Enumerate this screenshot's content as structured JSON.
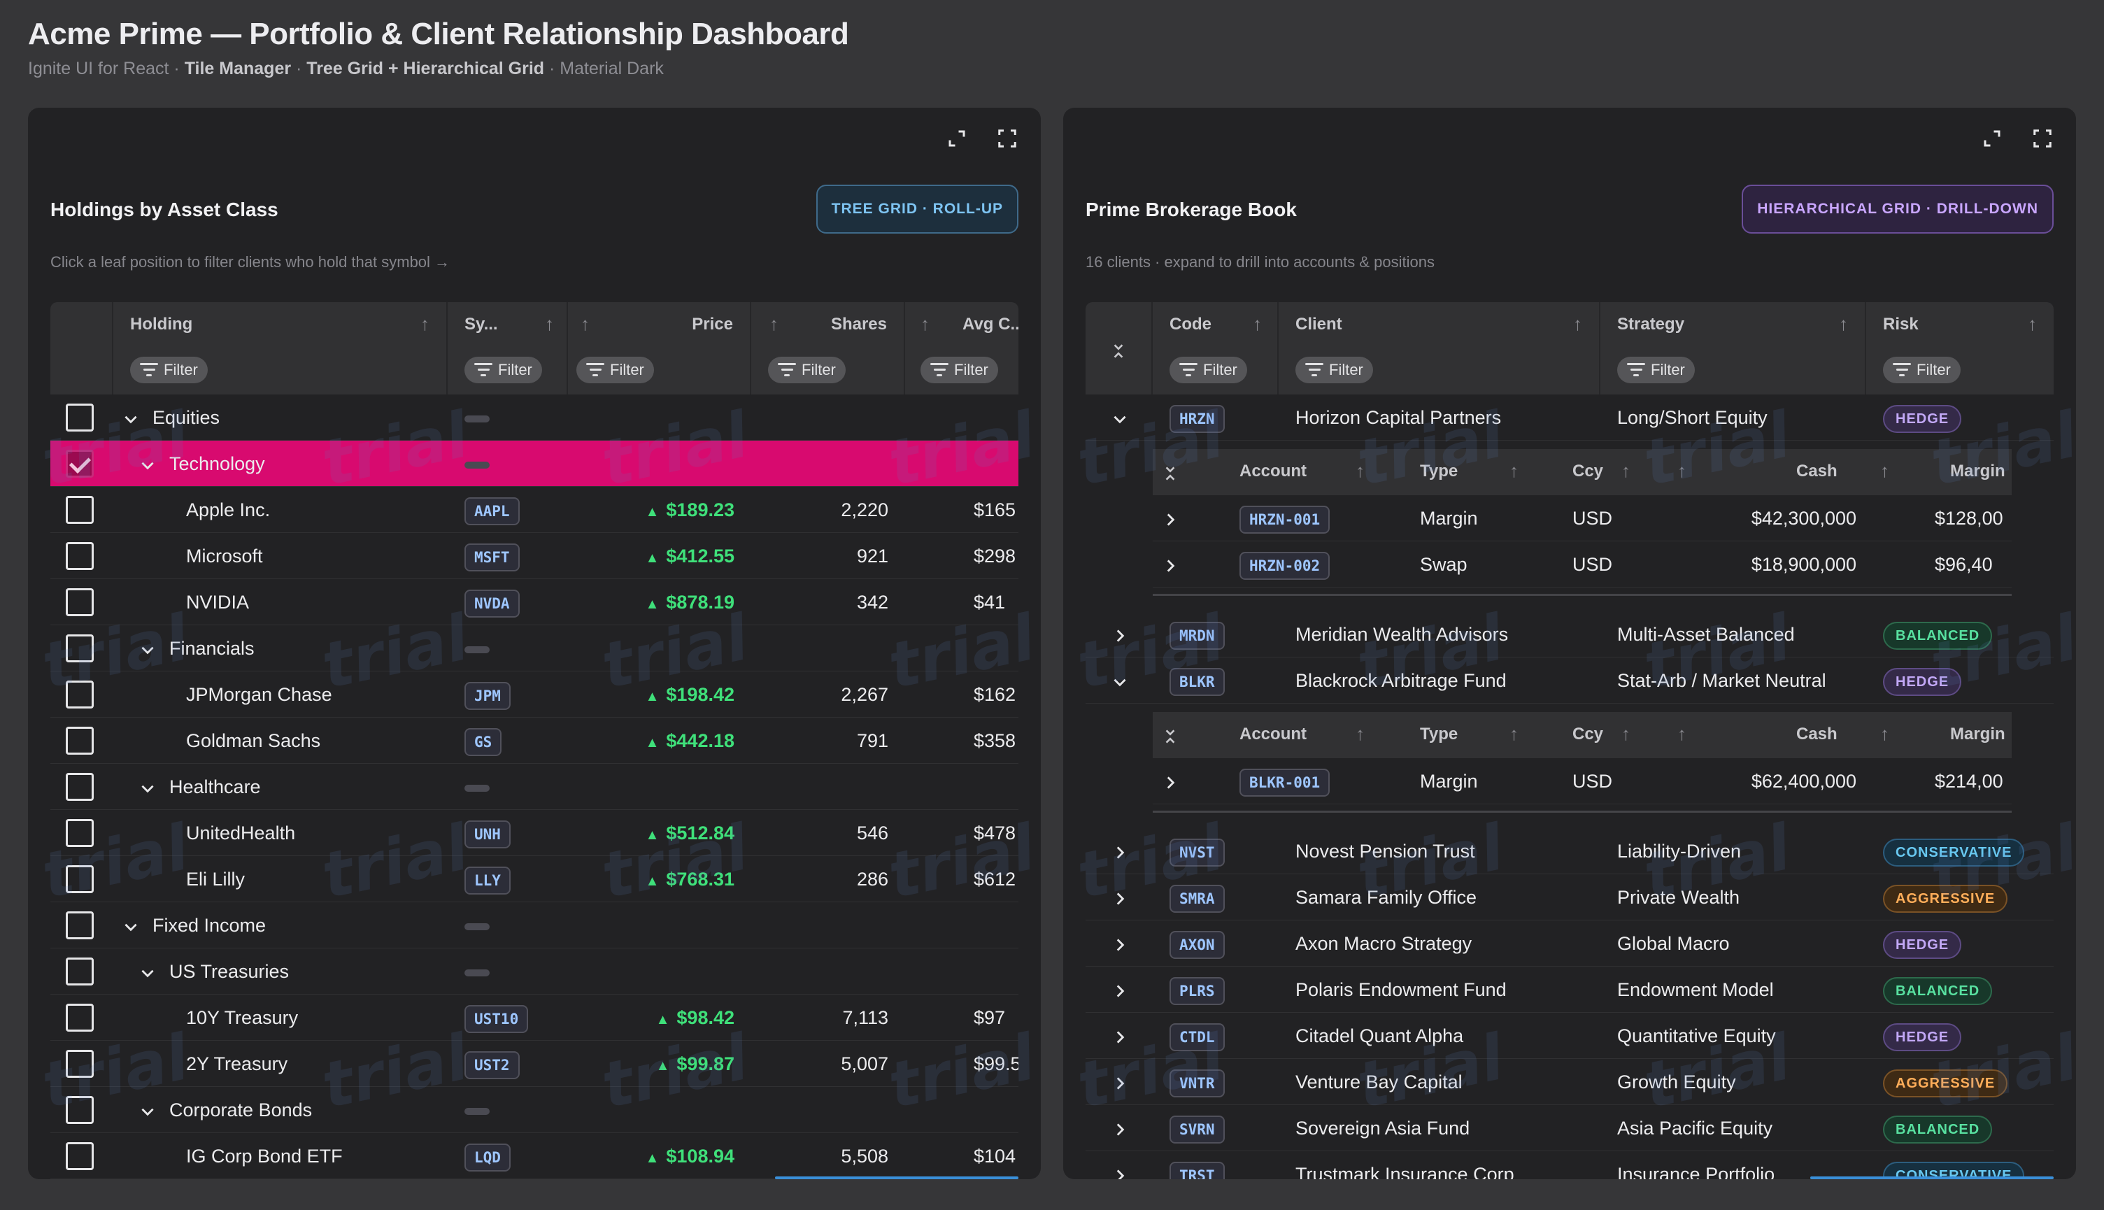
{
  "header": {
    "title": "Acme Prime — Portfolio & Client Relationship Dashboard",
    "sub_prefix": "Ignite UI for React · ",
    "sub_b1": "Tile Manager",
    "sub_sep1": " · ",
    "sub_b2": "Tree Grid + Hierarchical Grid",
    "sub_suffix": " · Material Dark"
  },
  "watermark_text": "trial",
  "filter_label": "Filter",
  "holdings": {
    "title": "Holdings by Asset Class",
    "hint": "Click a leaf position to filter clients who hold that symbol →",
    "badge": "TREE GRID · ROLL-UP",
    "columns": {
      "holding": "Holding",
      "symbol": "Sy...",
      "price": "Price",
      "shares": "Shares",
      "avg_cost": "Avg C.."
    },
    "rows": [
      {
        "label": "Equities",
        "level": 0,
        "group": true,
        "expanded": true,
        "symbol": "",
        "price": "",
        "shares": "",
        "avg": "",
        "selected": false
      },
      {
        "label": "Technology",
        "level": 1,
        "group": true,
        "expanded": true,
        "symbol": "",
        "price": "",
        "shares": "",
        "avg": "",
        "selected": true
      },
      {
        "label": "Apple Inc.",
        "level": 2,
        "group": false,
        "symbol": "AAPL",
        "price": "$189.23",
        "shares": "2,220",
        "avg": "$165",
        "selected": false
      },
      {
        "label": "Microsoft",
        "level": 2,
        "group": false,
        "symbol": "MSFT",
        "price": "$412.55",
        "shares": "921",
        "avg": "$298",
        "selected": false
      },
      {
        "label": "NVIDIA",
        "level": 2,
        "group": false,
        "symbol": "NVDA",
        "price": "$878.19",
        "shares": "342",
        "avg": "$41",
        "selected": false
      },
      {
        "label": "Financials",
        "level": 1,
        "group": true,
        "expanded": true,
        "symbol": "",
        "price": "",
        "shares": "",
        "avg": "",
        "selected": false
      },
      {
        "label": "JPMorgan Chase",
        "level": 2,
        "group": false,
        "symbol": "JPM",
        "price": "$198.42",
        "shares": "2,267",
        "avg": "$162",
        "selected": false
      },
      {
        "label": "Goldman Sachs",
        "level": 2,
        "group": false,
        "symbol": "GS",
        "price": "$442.18",
        "shares": "791",
        "avg": "$358",
        "selected": false
      },
      {
        "label": "Healthcare",
        "level": 1,
        "group": true,
        "expanded": true,
        "symbol": "",
        "price": "",
        "shares": "",
        "avg": "",
        "selected": false
      },
      {
        "label": "UnitedHealth",
        "level": 2,
        "group": false,
        "symbol": "UNH",
        "price": "$512.84",
        "shares": "546",
        "avg": "$478",
        "selected": false
      },
      {
        "label": "Eli Lilly",
        "level": 2,
        "group": false,
        "symbol": "LLY",
        "price": "$768.31",
        "shares": "286",
        "avg": "$612",
        "selected": false
      },
      {
        "label": "Fixed Income",
        "level": 0,
        "group": true,
        "expanded": true,
        "symbol": "",
        "price": "",
        "shares": "",
        "avg": "",
        "selected": false
      },
      {
        "label": "US Treasuries",
        "level": 1,
        "group": true,
        "expanded": true,
        "symbol": "",
        "price": "",
        "shares": "",
        "avg": "",
        "selected": false
      },
      {
        "label": "10Y Treasury",
        "level": 2,
        "group": false,
        "symbol": "UST10",
        "price": "$98.42",
        "shares": "7,113",
        "avg": "$97",
        "selected": false
      },
      {
        "label": "2Y Treasury",
        "level": 2,
        "group": false,
        "symbol": "UST2",
        "price": "$99.87",
        "shares": "5,007",
        "avg": "$99.5",
        "selected": false
      },
      {
        "label": "Corporate Bonds",
        "level": 1,
        "group": true,
        "expanded": true,
        "symbol": "",
        "price": "",
        "shares": "",
        "avg": "",
        "selected": false
      },
      {
        "label": "IG Corp Bond ETF",
        "level": 2,
        "group": false,
        "symbol": "LQD",
        "price": "$108.94",
        "shares": "5,508",
        "avg": "$104",
        "selected": false
      }
    ]
  },
  "prime": {
    "title": "Prime Brokerage Book",
    "hint": "16 clients · expand to drill into accounts & positions",
    "badge": "HIERARCHICAL GRID · DRILL-DOWN",
    "columns": {
      "code": "Code",
      "client": "Client",
      "strategy": "Strategy",
      "risk": "Risk"
    },
    "child_columns": {
      "account": "Account",
      "type": "Type",
      "ccy": "Ccy",
      "cash": "Cash",
      "margin": "Margin"
    },
    "clients": [
      {
        "code": "HRZN",
        "client": "Horizon Capital Partners",
        "strategy": "Long/Short Equity",
        "risk": "HEDGE",
        "risk_kind": "hedge",
        "expanded": true,
        "accounts": [
          {
            "account": "HRZN-001",
            "type": "Margin",
            "ccy": "USD",
            "cash": "$42,300,000",
            "margin": "$128,00"
          },
          {
            "account": "HRZN-002",
            "type": "Swap",
            "ccy": "USD",
            "cash": "$18,900,000",
            "margin": "$96,40"
          }
        ]
      },
      {
        "code": "MRDN",
        "client": "Meridian Wealth Advisors",
        "strategy": "Multi-Asset Balanced",
        "risk": "BALANCED",
        "risk_kind": "balanced",
        "expanded": false,
        "accounts": []
      },
      {
        "code": "BLKR",
        "client": "Blackrock Arbitrage Fund",
        "strategy": "Stat-Arb / Market Neutral",
        "risk": "HEDGE",
        "risk_kind": "hedge",
        "expanded": true,
        "accounts": [
          {
            "account": "BLKR-001",
            "type": "Margin",
            "ccy": "USD",
            "cash": "$62,400,000",
            "margin": "$214,00"
          }
        ]
      },
      {
        "code": "NVST",
        "client": "Novest Pension Trust",
        "strategy": "Liability-Driven",
        "risk": "CONSERVATIVE",
        "risk_kind": "conservative",
        "expanded": false,
        "accounts": []
      },
      {
        "code": "SMRA",
        "client": "Samara Family Office",
        "strategy": "Private Wealth",
        "risk": "AGGRESSIVE",
        "risk_kind": "aggressive",
        "expanded": false,
        "accounts": []
      },
      {
        "code": "AXON",
        "client": "Axon Macro Strategy",
        "strategy": "Global Macro",
        "risk": "HEDGE",
        "risk_kind": "hedge",
        "expanded": false,
        "accounts": []
      },
      {
        "code": "PLRS",
        "client": "Polaris Endowment Fund",
        "strategy": "Endowment Model",
        "risk": "BALANCED",
        "risk_kind": "balanced",
        "expanded": false,
        "accounts": []
      },
      {
        "code": "CTDL",
        "client": "Citadel Quant Alpha",
        "strategy": "Quantitative Equity",
        "risk": "HEDGE",
        "risk_kind": "hedge",
        "expanded": false,
        "accounts": []
      },
      {
        "code": "VNTR",
        "client": "Venture Bay Capital",
        "strategy": "Growth Equity",
        "risk": "AGGRESSIVE",
        "risk_kind": "aggressive",
        "expanded": false,
        "accounts": []
      },
      {
        "code": "SVRN",
        "client": "Sovereign Asia Fund",
        "strategy": "Asia Pacific Equity",
        "risk": "BALANCED",
        "risk_kind": "balanced",
        "expanded": false,
        "accounts": []
      },
      {
        "code": "TRST",
        "client": "Trustmark Insurance Corp",
        "strategy": "Insurance Portfolio",
        "risk": "CONSERVATIVE",
        "risk_kind": "conservative",
        "expanded": false,
        "accounts": []
      }
    ]
  }
}
